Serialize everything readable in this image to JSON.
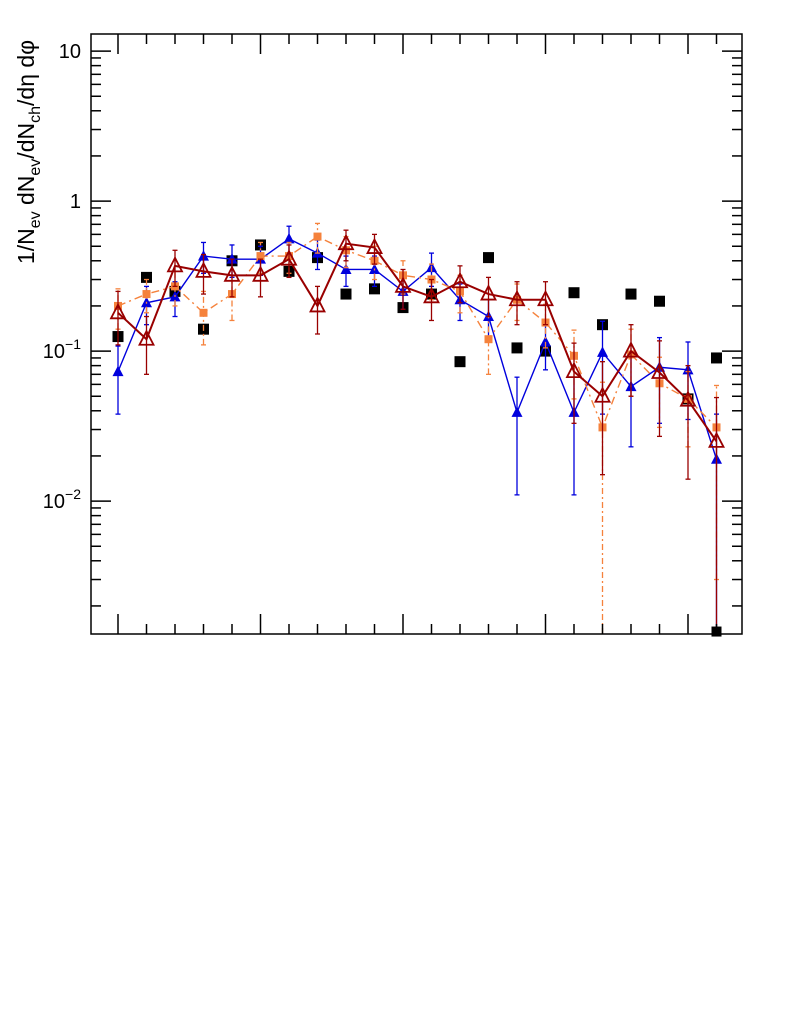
{
  "chart_data": {
    "type": "scatter",
    "title": "",
    "xlabel": "",
    "ylabel": "1/N_ev dN_ev/dN_ch/dη dφ",
    "ylabel_parts": {
      "a": "1/N",
      "a_sub": "ev",
      "b": " dN",
      "b_sub": "ev",
      "c": "/dN",
      "c_sub": "ch",
      "d": "/dη dφ"
    },
    "y_scale": "log",
    "ylim": [
      0.0013,
      13
    ],
    "xlim": [
      -1,
      22
    ],
    "x_ticks_labeled": false,
    "grid": false,
    "legend": "none",
    "y_tick_labels": [
      {
        "value": 10,
        "base": "10",
        "exp": ""
      },
      {
        "value": 1,
        "base": "1",
        "exp": ""
      },
      {
        "value": 0.1,
        "base": "10",
        "exp": "−1"
      },
      {
        "value": 0.01,
        "base": "10",
        "exp": "−2"
      }
    ],
    "series": [
      {
        "color": "#000000",
        "marker": "filled-square",
        "line": "none",
        "x": [
          0,
          1,
          2,
          3,
          4,
          5,
          6,
          7,
          8,
          9,
          10,
          11,
          12,
          13,
          14,
          15,
          16,
          17,
          18,
          19,
          20,
          21
        ],
        "y": [
          0.125,
          0.31,
          0.25,
          0.14,
          0.4,
          0.51,
          0.34,
          0.42,
          0.24,
          0.26,
          0.195,
          0.24,
          0.085,
          0.42,
          0.105,
          0.1,
          0.245,
          0.15,
          0.24,
          0.215,
          0.048,
          0.09
        ]
      },
      {
        "color": "#0000dd",
        "marker": "filled-triangle",
        "line": "solid",
        "x": [
          0,
          1,
          2,
          3,
          4,
          5,
          6,
          7,
          8,
          9,
          10,
          11,
          12,
          13,
          14,
          15,
          16,
          17,
          18,
          19,
          20,
          21
        ],
        "y": [
          0.073,
          0.21,
          0.23,
          0.43,
          0.41,
          0.41,
          0.56,
          0.45,
          0.35,
          0.35,
          0.25,
          0.36,
          0.22,
          0.17,
          0.039,
          0.115,
          0.039,
          0.098,
          0.058,
          0.078,
          0.075,
          0.019
        ],
        "err": [
          0.035,
          0.06,
          0.06,
          0.1,
          0.1,
          0.09,
          0.12,
          0.1,
          0.08,
          0.08,
          0.06,
          0.09,
          0.06,
          0.05,
          0.028,
          0.04,
          0.028,
          0.06,
          0.035,
          0.045,
          0.04,
          0.019
        ]
      },
      {
        "color": "#f5823c",
        "marker": "filled-square-small",
        "line": "dash-dot",
        "x": [
          0,
          1,
          2,
          3,
          4,
          5,
          6,
          7,
          8,
          9,
          10,
          11,
          12,
          13,
          14,
          15,
          16,
          17,
          18,
          19,
          20,
          21
        ],
        "y": [
          0.2,
          0.24,
          0.27,
          0.18,
          0.24,
          0.43,
          0.43,
          0.58,
          0.47,
          0.4,
          0.32,
          0.3,
          0.25,
          0.12,
          0.22,
          0.155,
          0.093,
          0.031,
          0.095,
          0.061,
          0.048,
          0.031
        ],
        "err": [
          0.06,
          0.06,
          0.07,
          0.07,
          0.08,
          0.1,
          0.1,
          0.13,
          0.11,
          0.1,
          0.08,
          0.08,
          0.07,
          0.05,
          0.06,
          0.05,
          0.045,
          0.031,
          0.045,
          0.03,
          0.025,
          0.028
        ]
      },
      {
        "color": "#990000",
        "marker": "open-triangle",
        "line": "solid",
        "x": [
          0,
          1,
          2,
          3,
          4,
          5,
          6,
          7,
          8,
          9,
          10,
          11,
          12,
          13,
          14,
          15,
          16,
          17,
          18,
          19,
          20,
          21
        ],
        "y": [
          0.18,
          0.12,
          0.37,
          0.34,
          0.32,
          0.32,
          0.41,
          0.2,
          0.52,
          0.49,
          0.27,
          0.23,
          0.29,
          0.24,
          0.22,
          0.22,
          0.073,
          0.05,
          0.1,
          0.072,
          0.047,
          0.025
        ],
        "err": [
          0.07,
          0.05,
          0.1,
          0.1,
          0.09,
          0.09,
          0.1,
          0.07,
          0.12,
          0.11,
          0.08,
          0.07,
          0.08,
          0.07,
          0.07,
          0.07,
          0.04,
          0.035,
          0.05,
          0.045,
          0.033,
          0.024
        ]
      }
    ],
    "extra_points": [
      {
        "x": 21,
        "y": 0.00135,
        "color": "#000000",
        "marker": "filled-square"
      }
    ]
  }
}
